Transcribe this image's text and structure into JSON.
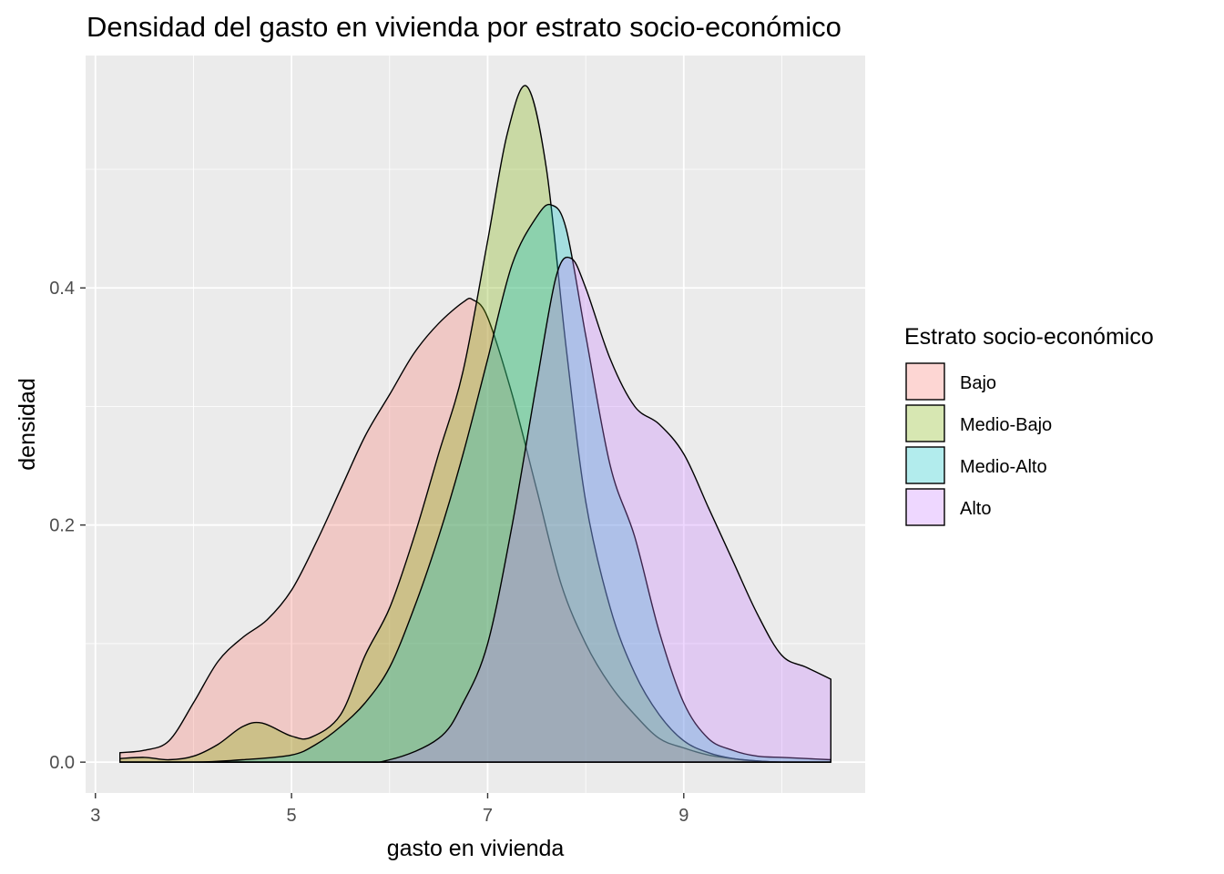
{
  "chart_data": {
    "type": "area",
    "title": "Densidad del gasto en vivienda por estrato socio-económico",
    "xlabel": "gasto en vivienda",
    "ylabel": "densidad",
    "xlim": [
      2.9,
      10.85
    ],
    "ylim": [
      -0.026,
      0.596
    ],
    "x_ticks": [
      3,
      5,
      7,
      9
    ],
    "x_tick_labels": [
      "3",
      "5",
      "7",
      "9"
    ],
    "y_ticks": [
      0.0,
      0.2,
      0.4
    ],
    "y_tick_labels": [
      "0.0",
      "0.2",
      "0.4"
    ],
    "grid": true,
    "legend": {
      "title": "Estrato socio-económico",
      "position": "right"
    },
    "series": [
      {
        "name": "Bajo",
        "color": "#F8766D",
        "x": [
          3.25,
          3.5,
          3.75,
          4.0,
          4.25,
          4.5,
          4.75,
          5.0,
          5.25,
          5.5,
          5.75,
          6.0,
          6.25,
          6.5,
          6.75,
          6.85,
          7.0,
          7.25,
          7.5,
          7.75,
          8.0,
          8.25,
          8.5,
          8.75,
          9.0,
          9.25,
          9.5,
          9.75,
          10.0,
          10.5
        ],
        "y": [
          0.008,
          0.01,
          0.018,
          0.05,
          0.085,
          0.105,
          0.12,
          0.145,
          0.185,
          0.23,
          0.275,
          0.31,
          0.345,
          0.37,
          0.388,
          0.39,
          0.375,
          0.31,
          0.23,
          0.15,
          0.1,
          0.065,
          0.04,
          0.02,
          0.012,
          0.006,
          0.003,
          0.001,
          0.0,
          0.0
        ]
      },
      {
        "name": "Medio-Bajo",
        "color": "#7CAE00",
        "x": [
          3.25,
          3.5,
          3.75,
          4.0,
          4.25,
          4.5,
          4.7,
          5.0,
          5.2,
          5.5,
          5.75,
          6.0,
          6.25,
          6.5,
          6.75,
          7.0,
          7.2,
          7.4,
          7.6,
          7.8,
          8.0,
          8.25,
          8.5,
          8.75,
          9.0,
          9.25,
          9.5,
          9.75,
          10.0,
          10.5
        ],
        "y": [
          0.003,
          0.004,
          0.002,
          0.005,
          0.015,
          0.03,
          0.033,
          0.022,
          0.021,
          0.04,
          0.09,
          0.13,
          0.19,
          0.26,
          0.33,
          0.44,
          0.53,
          0.57,
          0.5,
          0.35,
          0.22,
          0.13,
          0.075,
          0.04,
          0.018,
          0.008,
          0.003,
          0.001,
          0.0,
          0.0
        ]
      },
      {
        "name": "Medio-Alto",
        "color": "#00BFC4",
        "x": [
          3.25,
          4.0,
          4.5,
          5.0,
          5.25,
          5.5,
          5.75,
          6.0,
          6.25,
          6.5,
          6.75,
          7.0,
          7.25,
          7.5,
          7.65,
          7.8,
          8.0,
          8.25,
          8.5,
          8.75,
          9.0,
          9.25,
          9.5,
          9.75,
          10.0,
          10.25,
          10.5
        ],
        "y": [
          0.0,
          0.0,
          0.002,
          0.006,
          0.015,
          0.03,
          0.05,
          0.08,
          0.13,
          0.19,
          0.26,
          0.34,
          0.42,
          0.46,
          0.47,
          0.45,
          0.36,
          0.25,
          0.19,
          0.11,
          0.05,
          0.02,
          0.01,
          0.005,
          0.004,
          0.003,
          0.002
        ]
      },
      {
        "name": "Alto",
        "color": "#C77CFF",
        "x": [
          3.25,
          5.5,
          6.0,
          6.5,
          6.75,
          7.0,
          7.25,
          7.5,
          7.7,
          7.85,
          8.0,
          8.25,
          8.5,
          8.75,
          9.0,
          9.25,
          9.5,
          9.75,
          10.0,
          10.25,
          10.5
        ],
        "y": [
          0.0,
          0.0,
          0.002,
          0.02,
          0.05,
          0.1,
          0.2,
          0.32,
          0.41,
          0.425,
          0.4,
          0.34,
          0.3,
          0.285,
          0.26,
          0.215,
          0.17,
          0.125,
          0.09,
          0.08,
          0.07
        ]
      }
    ]
  }
}
